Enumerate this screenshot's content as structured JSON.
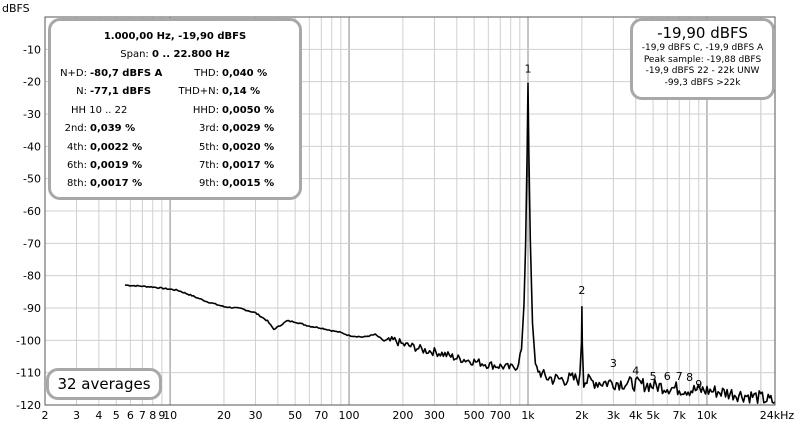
{
  "chart_data": {
    "type": "line",
    "ylabel": "dBFS",
    "xlim": [
      2,
      24000
    ],
    "ylim": [
      -120,
      0
    ],
    "xscale": "log",
    "grid": true,
    "x_ticks": [
      {
        "v": 2,
        "t": "2"
      },
      {
        "v": 3,
        "t": "3"
      },
      {
        "v": 4,
        "t": "4"
      },
      {
        "v": 5,
        "t": "5"
      },
      {
        "v": 6,
        "t": "6"
      },
      {
        "v": 7,
        "t": "7"
      },
      {
        "v": 8,
        "t": "8"
      },
      {
        "v": 9,
        "t": "9"
      },
      {
        "v": 10,
        "t": "10"
      },
      {
        "v": 20,
        "t": "20"
      },
      {
        "v": 30,
        "t": "30"
      },
      {
        "v": 50,
        "t": "50"
      },
      {
        "v": 70,
        "t": "70"
      },
      {
        "v": 100,
        "t": "100"
      },
      {
        "v": 200,
        "t": "200"
      },
      {
        "v": 300,
        "t": "300"
      },
      {
        "v": 500,
        "t": "500"
      },
      {
        "v": 700,
        "t": "700"
      },
      {
        "v": 1000,
        "t": "1k"
      },
      {
        "v": 2000,
        "t": "2k"
      },
      {
        "v": 3000,
        "t": "3k"
      },
      {
        "v": 4000,
        "t": "4k"
      },
      {
        "v": 5000,
        "t": "5k"
      },
      {
        "v": 7000,
        "t": "7k"
      },
      {
        "v": 10000,
        "t": "10k"
      },
      {
        "v": 24000,
        "t": "24kHz"
      }
    ],
    "y_ticks": [
      {
        "v": -10,
        "t": "-10"
      },
      {
        "v": -20,
        "t": "-20"
      },
      {
        "v": -30,
        "t": "-30"
      },
      {
        "v": -40,
        "t": "-40"
      },
      {
        "v": -50,
        "t": "-50"
      },
      {
        "v": -60,
        "t": "-60"
      },
      {
        "v": -70,
        "t": "-70"
      },
      {
        "v": -80,
        "t": "-80"
      },
      {
        "v": -90,
        "t": "-90"
      },
      {
        "v": -100,
        "t": "-100"
      },
      {
        "v": -110,
        "t": "-110"
      },
      {
        "v": -120,
        "t": "-120"
      }
    ],
    "series": [
      {
        "points": [
          [
            5.6,
            -82.9
          ],
          [
            8,
            -83.5
          ],
          [
            11,
            -84.5
          ],
          [
            13,
            -86
          ],
          [
            16,
            -88
          ],
          [
            20,
            -89.6
          ],
          [
            25,
            -90.2
          ],
          [
            30,
            -91.5
          ],
          [
            35,
            -94
          ],
          [
            38,
            -96.6
          ],
          [
            41,
            -95.5
          ],
          [
            45,
            -94
          ],
          [
            50,
            -94.3
          ],
          [
            55,
            -95
          ],
          [
            60,
            -95.6
          ],
          [
            70,
            -96.2
          ],
          [
            80,
            -97
          ],
          [
            90,
            -97.6
          ],
          [
            100,
            -98.5
          ],
          [
            120,
            -99
          ],
          [
            140,
            -98.2
          ],
          [
            160,
            -100.5
          ],
          [
            180,
            -100
          ],
          [
            200,
            -101.3
          ],
          [
            230,
            -102
          ],
          [
            260,
            -103
          ],
          [
            300,
            -103.5
          ],
          [
            350,
            -104.5
          ],
          [
            400,
            -105.5
          ],
          [
            500,
            -106.5
          ],
          [
            600,
            -107.5
          ],
          [
            700,
            -108
          ],
          [
            800,
            -108.5
          ],
          [
            870,
            -108
          ],
          [
            920,
            -103
          ],
          [
            950,
            -90
          ],
          [
            970,
            -70
          ],
          [
            990,
            -40
          ],
          [
            1000,
            -20
          ],
          [
            1010,
            -40
          ],
          [
            1030,
            -70
          ],
          [
            1060,
            -95
          ],
          [
            1100,
            -108
          ],
          [
            1200,
            -111
          ],
          [
            1400,
            -112
          ],
          [
            1700,
            -112
          ],
          [
            1950,
            -112
          ],
          [
            1990,
            -100
          ],
          [
            2000,
            -88.5
          ],
          [
            2010,
            -100
          ],
          [
            2050,
            -112.5
          ],
          [
            2500,
            -113
          ],
          [
            3000,
            -113
          ],
          [
            4000,
            -113.5
          ],
          [
            5000,
            -114
          ],
          [
            6000,
            -114.5
          ],
          [
            7000,
            -115
          ],
          [
            8000,
            -115.3
          ],
          [
            10000,
            -115.5
          ],
          [
            12000,
            -116
          ],
          [
            14000,
            -116.5
          ],
          [
            16000,
            -117
          ],
          [
            18000,
            -117.3
          ],
          [
            20000,
            -117.8
          ],
          [
            22000,
            -118.5
          ],
          [
            24000,
            -119
          ]
        ]
      }
    ],
    "annotations": [
      {
        "text": "1",
        "x": 1000,
        "y": -17.2
      },
      {
        "text": "2",
        "x": 2000,
        "y": -85.6
      },
      {
        "text": "3",
        "x": 3000,
        "y": -108.3
      },
      {
        "text": "4",
        "x": 4000,
        "y": -110.5
      },
      {
        "text": "5",
        "x": 5000,
        "y": -112.3
      },
      {
        "text": "6",
        "x": 6000,
        "y": -112.3
      },
      {
        "text": "7",
        "x": 7000,
        "y": -112.3
      },
      {
        "text": "8",
        "x": 8000,
        "y": -112.6
      },
      {
        "text": "9",
        "x": 9000,
        "y": -114.8
      }
    ]
  },
  "stats": {
    "header": "1.000,00 Hz, -19,90 dBFS",
    "span_label": "Span:",
    "span_value": "0 .. 22.800 Hz",
    "nd_label": "N+D:",
    "nd_value": "-80,7 dBFS A",
    "thd_label": "THD:",
    "thd_value": "0,040 %",
    "n_label": "N:",
    "n_value": "-77,1 dBFS",
    "thdn_label": "THD+N:",
    "thdn_value": "0,14 %",
    "hh_label": "HH 10 .. 22",
    "hhd_label": "HHD:",
    "hhd_value": "0,0050 %",
    "h2_label": "2nd:",
    "h2_value": "0,039 %",
    "h3_label": "3rd:",
    "h3_value": "0,0029 %",
    "h4_label": "4th:",
    "h4_value": "0,0022 %",
    "h5_label": "5th:",
    "h5_value": "0,0020 %",
    "h6_label": "6th:",
    "h6_value": "0,0019 %",
    "h7_label": "7th:",
    "h7_value": "0,0017 %",
    "h8_label": "8th:",
    "h8_value": "0,0017 %",
    "h9_label": "9th:",
    "h9_value": "0,0015 %"
  },
  "level": {
    "main": "-19,90 dBFS",
    "line1": "-19,9 dBFS C, -19,9 dBFS A",
    "line2": "Peak sample: -19,88 dBFS",
    "line3": "-19,9 dBFS 22 - 22k UNW",
    "line4": "-99,3 dBFS >22k"
  },
  "averages": "32 averages",
  "colors": {
    "curve": "#000000",
    "major_grid": "#888888",
    "minor_grid": "#d0d0d0",
    "panel_border": "#a8a8a8"
  }
}
